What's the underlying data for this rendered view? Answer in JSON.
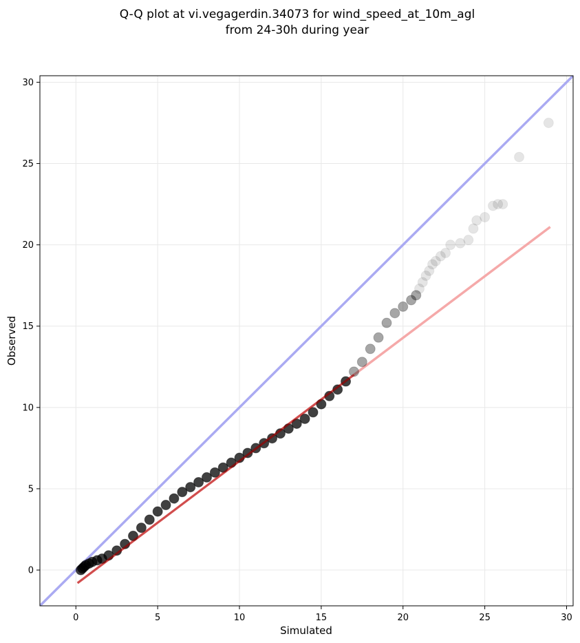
{
  "chart_data": {
    "type": "scatter",
    "title_line1": "Q-Q plot at vi.vegagerdin.34073 for wind_speed_at_10m_agl",
    "title_line2": "from 24-30h during year",
    "xlabel": "Simulated",
    "ylabel": "Observed",
    "xlim": [
      -2.2,
      30.4
    ],
    "ylim": [
      -2.2,
      30.4
    ],
    "xticks": [
      0,
      5,
      10,
      15,
      20,
      25,
      30
    ],
    "yticks": [
      0,
      5,
      10,
      15,
      20,
      25,
      30
    ],
    "grid": true,
    "colors": {
      "points": "#000000",
      "identity_line": "#aaaaf2",
      "fit_line": "#f5a9a9",
      "grid": "#e8e8e8"
    },
    "identity_line": {
      "x": [
        -2.2,
        30.4
      ],
      "y": [
        -2.2,
        30.4
      ]
    },
    "fit_line": {
      "x": [
        0.1,
        29.0
      ],
      "y": [
        -0.8,
        21.1
      ]
    },
    "series": [
      {
        "x": [
          0.3,
          0.4,
          0.5,
          0.6,
          0.8,
          1.0,
          1.3,
          1.6,
          2.0,
          2.5,
          3.0,
          3.5,
          4.0,
          4.5,
          5.0,
          5.5,
          6.0,
          6.5,
          7.0,
          7.5,
          8.0,
          8.5,
          9.0,
          9.5,
          10.0,
          10.5,
          11.0,
          11.5,
          12.0,
          12.5,
          13.0,
          13.5,
          14.0,
          14.5,
          15.0,
          15.5,
          16.0,
          16.5,
          17.0,
          17.5,
          18.0,
          18.5,
          19.0,
          19.5,
          20.0,
          20.5,
          20.8,
          21.0,
          21.2,
          21.4,
          21.6,
          21.8,
          22.0,
          22.3,
          22.6,
          22.9,
          23.5,
          24.0,
          24.3,
          24.5,
          25.0,
          25.5,
          25.8,
          26.1,
          27.1,
          28.9
        ],
        "y": [
          0.0,
          0.1,
          0.2,
          0.3,
          0.4,
          0.5,
          0.6,
          0.7,
          0.9,
          1.2,
          1.6,
          2.1,
          2.6,
          3.1,
          3.6,
          4.0,
          4.4,
          4.8,
          5.1,
          5.4,
          5.7,
          6.0,
          6.3,
          6.6,
          6.9,
          7.2,
          7.5,
          7.8,
          8.1,
          8.4,
          8.7,
          9.0,
          9.3,
          9.7,
          10.2,
          10.7,
          11.1,
          11.6,
          12.2,
          12.8,
          13.6,
          14.3,
          15.2,
          15.8,
          16.2,
          16.6,
          16.9,
          17.3,
          17.7,
          18.1,
          18.4,
          18.8,
          19.0,
          19.3,
          19.5,
          20.0,
          20.1,
          20.3,
          21.0,
          21.5,
          21.7,
          22.4,
          22.5,
          22.5,
          25.4,
          27.5
        ]
      }
    ]
  }
}
